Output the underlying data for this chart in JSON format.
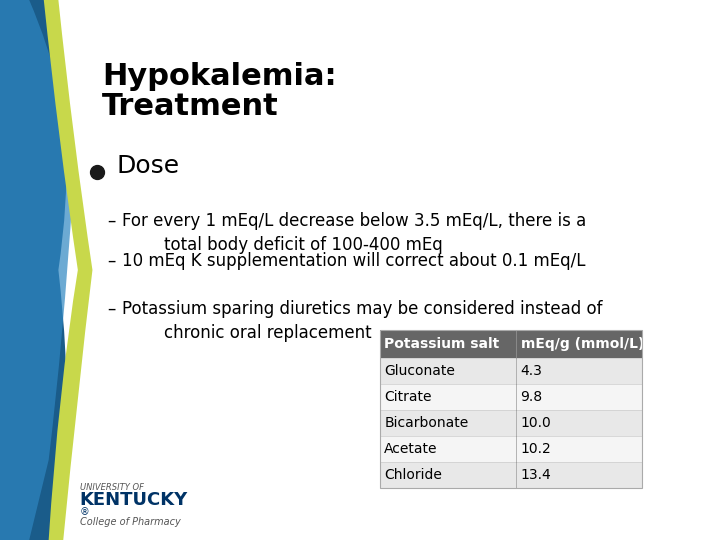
{
  "title_line1": "Hypokalemia:",
  "title_line2": "Treatment",
  "bullet_main": "Dose",
  "sub_bullets": [
    "For every 1 mEq/L decrease below 3.5 mEq/L, there is a\n        total body deficit of 100-400 mEq",
    "10 mEq K supplementation will correct about 0.1 mEq/L",
    "Potassium sparing diuretics may be considered instead of\n        chronic oral replacement"
  ],
  "table_header": [
    "Potassium salt",
    "mEq/g (mmol/L)"
  ],
  "table_rows": [
    [
      "Gluconate",
      "4.3"
    ],
    [
      "Citrate",
      "9.8"
    ],
    [
      "Bicarbonate",
      "10.0"
    ],
    [
      "Acetate",
      "10.2"
    ],
    [
      "Chloride",
      "13.4"
    ]
  ],
  "table_header_bg": "#666666",
  "table_row_bg_alt": "#e8e8e8",
  "table_row_bg_main": "#f5f5f5",
  "header_text_color": "#ffffff",
  "title_color": "#000000",
  "body_color": "#000000",
  "bg_color": "#ffffff",
  "left_curve_color1": "#1a5276",
  "left_curve_color2": "#27ae60",
  "bottom_logo_text": "UNIVERSITY OF\nKENTUCKY®\nCollege of Pharmacy"
}
